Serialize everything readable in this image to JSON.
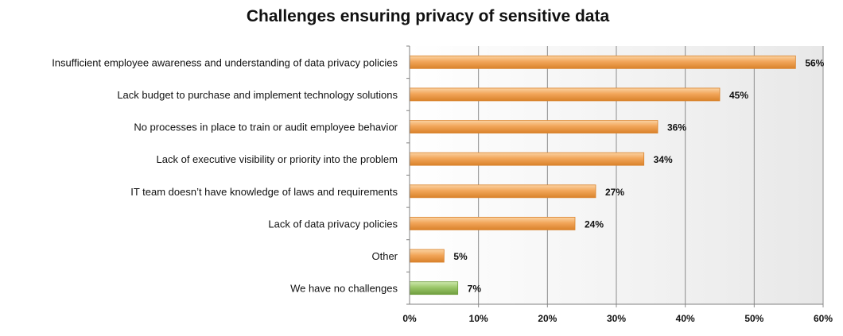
{
  "chart_data": {
    "type": "bar",
    "orientation": "horizontal",
    "title": "Challenges ensuring privacy of sensitive data",
    "categories": [
      "Insufficient employee awareness and understanding of data privacy policies",
      "Lack budget to purchase and implement technology solutions",
      "No processes in place to train or audit employee behavior",
      "Lack of executive visibility or priority into the problem",
      "IT team doesn’t have knowledge of laws and requirements",
      "Lack of data privacy policies",
      "Other",
      "We have no challenges"
    ],
    "values": [
      56,
      45,
      36,
      34,
      27,
      24,
      5,
      7
    ],
    "data_labels": [
      "56%",
      "45%",
      "36%",
      "34%",
      "27%",
      "24%",
      "5%",
      "7%"
    ],
    "xlim": [
      0,
      60
    ],
    "x_ticks": [
      0,
      10,
      20,
      30,
      40,
      50,
      60
    ],
    "x_tick_labels": [
      "0%",
      "10%",
      "20%",
      "30%",
      "40%",
      "50%",
      "60%"
    ],
    "xlabel": "",
    "ylabel": "",
    "grid": true,
    "legend": "none",
    "colors": {
      "default_bar": "#F2A65A",
      "default_bar_light": "#FBD3A3",
      "default_bar_dark": "#D9822B",
      "highlight_bar": "#9BC76A",
      "highlight_bar_light": "#CDE8AE",
      "highlight_bar_dark": "#6F9E3E",
      "highlight_index": 7,
      "plot_background_light": "#FFFFFF",
      "plot_background_dark": "#E8E8E8",
      "gridline": "#8C8C8C"
    }
  }
}
